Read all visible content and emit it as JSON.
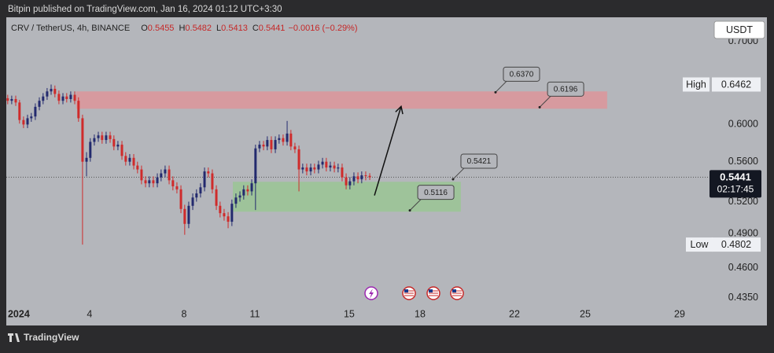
{
  "page": {
    "publisher_line": "Bitpin published on TradingView.com, Jan 16, 2024 01:12 UTC+3:30",
    "footer_brand": "TradingView"
  },
  "chart_data": {
    "type": "candlestick",
    "symbol": "CRV / TetherUS, 4h, BINANCE",
    "ohlc": [
      {
        "label": "O",
        "value": "0.5455"
      },
      {
        "label": "H",
        "value": "0.5482"
      },
      {
        "label": "L",
        "value": "0.5413"
      },
      {
        "label": "C",
        "value": "0.5441"
      }
    ],
    "change": "−0.0016 (−0.29%)",
    "currency": "USDT",
    "log_scale": true,
    "grid": false,
    "up_color": "#232a6e",
    "down_color": "#cf2b2b",
    "xlim": [
      0.47,
      30.2
    ],
    "ylim": [
      0.428,
      0.732
    ],
    "xticks": [
      {
        "value": 1,
        "label": "2024"
      },
      4,
      8,
      11,
      15,
      18,
      22,
      25,
      29
    ],
    "yticks": [
      {
        "value": 0.7,
        "label": "0.7000"
      },
      {
        "value": 0.6,
        "label": "0.6000"
      },
      {
        "value": 0.56,
        "label": "0.5600"
      },
      {
        "value": 0.52,
        "label": "0.5200"
      },
      {
        "value": 0.49,
        "label": "0.4900"
      },
      {
        "value": 0.46,
        "label": "0.4600"
      },
      {
        "value": 0.435,
        "label": "0.4350"
      }
    ],
    "x": [
      0.53,
      0.7,
      0.87,
      1.03,
      1.2,
      1.37,
      1.53,
      1.7,
      1.87,
      2.03,
      2.2,
      2.37,
      2.53,
      2.7,
      2.87,
      3.03,
      3.2,
      3.37,
      3.53,
      3.7,
      3.87,
      4.03,
      4.2,
      4.37,
      4.53,
      4.7,
      4.87,
      5.03,
      5.2,
      5.37,
      5.53,
      5.7,
      5.87,
      6.03,
      6.2,
      6.37,
      6.53,
      6.7,
      6.87,
      7.03,
      7.2,
      7.37,
      7.53,
      7.7,
      7.87,
      8.03,
      8.2,
      8.37,
      8.53,
      8.7,
      8.87,
      9.03,
      9.2,
      9.37,
      9.53,
      9.7,
      9.87,
      10.03,
      10.2,
      10.37,
      10.53,
      10.7,
      10.87,
      11.03,
      11.2,
      11.37,
      11.53,
      11.7,
      11.87,
      12.03,
      12.2,
      12.37,
      12.53,
      12.7,
      12.87,
      13.03,
      13.2,
      13.37,
      13.53,
      13.7,
      13.87,
      14.03,
      14.2,
      14.37,
      14.53,
      14.7,
      14.87,
      15.03,
      15.2,
      15.37,
      15.53,
      15.7,
      15.87
    ],
    "open": [
      0.63,
      0.627,
      0.629,
      0.625,
      0.605,
      0.6,
      0.607,
      0.609,
      0.62,
      0.627,
      0.632,
      0.638,
      0.641,
      0.635,
      0.627,
      0.632,
      0.629,
      0.634,
      0.627,
      0.607,
      0.56,
      0.564,
      0.581,
      0.585,
      0.588,
      0.583,
      0.588,
      0.584,
      0.576,
      0.578,
      0.566,
      0.56,
      0.564,
      0.556,
      0.552,
      0.541,
      0.538,
      0.541,
      0.538,
      0.544,
      0.548,
      0.552,
      0.541,
      0.535,
      0.532,
      0.513,
      0.499,
      0.516,
      0.524,
      0.528,
      0.534,
      0.55,
      0.548,
      0.532,
      0.516,
      0.509,
      0.506,
      0.501,
      0.518,
      0.524,
      0.526,
      0.532,
      0.53,
      0.538,
      0.574,
      0.578,
      0.576,
      0.583,
      0.573,
      0.583,
      0.585,
      0.581,
      0.59,
      0.576,
      0.573,
      0.552,
      0.554,
      0.55,
      0.554,
      0.552,
      0.557,
      0.56,
      0.554,
      0.556,
      0.553,
      0.554,
      0.544,
      0.536,
      0.54,
      0.545,
      0.542,
      0.546,
      0.5455
    ],
    "high": [
      0.634,
      0.633,
      0.633,
      0.628,
      0.609,
      0.611,
      0.613,
      0.624,
      0.631,
      0.636,
      0.642,
      0.6462,
      0.645,
      0.639,
      0.636,
      0.636,
      0.638,
      0.638,
      0.631,
      0.611,
      0.57,
      0.585,
      0.589,
      0.592,
      0.592,
      0.592,
      0.592,
      0.588,
      0.582,
      0.582,
      0.57,
      0.568,
      0.568,
      0.56,
      0.556,
      0.545,
      0.545,
      0.545,
      0.548,
      0.552,
      0.556,
      0.556,
      0.545,
      0.539,
      0.536,
      0.517,
      0.52,
      0.528,
      0.532,
      0.538,
      0.554,
      0.554,
      0.552,
      0.536,
      0.52,
      0.513,
      0.51,
      0.522,
      0.528,
      0.53,
      0.536,
      0.536,
      0.542,
      0.578,
      0.582,
      0.582,
      0.587,
      0.587,
      0.587,
      0.589,
      0.589,
      0.604,
      0.594,
      0.58,
      0.577,
      0.558,
      0.558,
      0.558,
      0.558,
      0.561,
      0.564,
      0.564,
      0.56,
      0.56,
      0.558,
      0.558,
      0.548,
      0.544,
      0.549,
      0.549,
      0.55,
      0.55,
      0.5482
    ],
    "low": [
      0.623,
      0.623,
      0.621,
      0.601,
      0.596,
      0.596,
      0.603,
      0.605,
      0.616,
      0.623,
      0.628,
      0.634,
      0.631,
      0.623,
      0.623,
      0.625,
      0.625,
      0.623,
      0.603,
      0.4802,
      0.545,
      0.56,
      0.577,
      0.581,
      0.579,
      0.579,
      0.58,
      0.572,
      0.572,
      0.562,
      0.556,
      0.556,
      0.552,
      0.548,
      0.537,
      0.534,
      0.534,
      0.534,
      0.534,
      0.54,
      0.544,
      0.537,
      0.531,
      0.528,
      0.509,
      0.489,
      0.495,
      0.512,
      0.52,
      0.524,
      0.53,
      0.544,
      0.528,
      0.512,
      0.505,
      0.502,
      0.495,
      0.497,
      0.514,
      0.52,
      0.522,
      0.526,
      0.526,
      0.512,
      0.57,
      0.572,
      0.572,
      0.569,
      0.569,
      0.579,
      0.577,
      0.577,
      0.572,
      0.569,
      0.53,
      0.548,
      0.546,
      0.546,
      0.548,
      0.548,
      0.553,
      0.55,
      0.55,
      0.549,
      0.549,
      0.54,
      0.532,
      0.532,
      0.536,
      0.538,
      0.538,
      0.541,
      0.5413
    ],
    "close": [
      0.627,
      0.629,
      0.625,
      0.605,
      0.6,
      0.607,
      0.609,
      0.62,
      0.627,
      0.632,
      0.638,
      0.641,
      0.635,
      0.627,
      0.632,
      0.629,
      0.634,
      0.627,
      0.607,
      0.56,
      0.564,
      0.581,
      0.585,
      0.588,
      0.583,
      0.588,
      0.584,
      0.576,
      0.578,
      0.566,
      0.56,
      0.564,
      0.556,
      0.552,
      0.541,
      0.538,
      0.541,
      0.538,
      0.544,
      0.548,
      0.552,
      0.541,
      0.535,
      0.532,
      0.513,
      0.499,
      0.516,
      0.524,
      0.528,
      0.534,
      0.55,
      0.548,
      0.532,
      0.516,
      0.509,
      0.506,
      0.501,
      0.518,
      0.524,
      0.526,
      0.532,
      0.53,
      0.538,
      0.574,
      0.578,
      0.576,
      0.583,
      0.573,
      0.583,
      0.585,
      0.581,
      0.59,
      0.576,
      0.573,
      0.552,
      0.554,
      0.55,
      0.554,
      0.552,
      0.557,
      0.56,
      0.554,
      0.556,
      0.553,
      0.554,
      0.544,
      0.536,
      0.54,
      0.545,
      0.542,
      0.546,
      0.5455,
      0.5441
    ],
    "zones": [
      {
        "x": [
          3.43,
          25.93
        ],
        "y": [
          0.6178,
          0.638
        ],
        "color": "#d79a9f"
      },
      {
        "x": [
          10.07,
          19.73
        ],
        "y": [
          0.5104,
          0.5395
        ],
        "color": "#9ec39a"
      }
    ],
    "callouts": [
      {
        "label": "0.6370",
        "value": 0.637,
        "x": 21.2
      },
      {
        "label": "0.6196",
        "value": 0.6196,
        "x": 23.07
      },
      {
        "label": "0.5421",
        "value": 0.5421,
        "x": 19.4
      },
      {
        "label": "0.5116",
        "value": 0.5116,
        "x": 17.57
      }
    ],
    "arrow": {
      "x": [
        16.07,
        17.2
      ],
      "y": [
        0.526,
        0.6205
      ]
    },
    "high_marker": {
      "label": "High",
      "value": 0.6462
    },
    "low_marker": {
      "label": "Low",
      "value": 0.4802
    },
    "last_price": {
      "value": 0.5441,
      "countdown": "02:17:45"
    }
  }
}
